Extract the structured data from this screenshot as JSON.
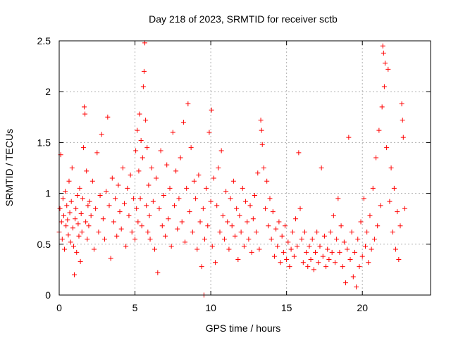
{
  "chart_data": {
    "type": "scatter",
    "title": "Day 218 of 2023, SRMTID for receiver sctb",
    "xlabel": "GPS time / hours",
    "ylabel": "SRMTID / TECUs",
    "xlim": [
      0,
      24.5
    ],
    "ylim": [
      0,
      2.5
    ],
    "xticks": [
      0,
      5,
      10,
      15,
      20
    ],
    "xtick_labels": [
      "0",
      "5",
      "10",
      "15",
      "20"
    ],
    "yticks": [
      0,
      0.5,
      1,
      1.5,
      2,
      2.5
    ],
    "ytick_labels": [
      "0",
      "0.5",
      "1",
      "1.5",
      "2",
      "2.5"
    ],
    "grid": true,
    "marker": "+",
    "color": "#ff0000",
    "series": [
      {
        "name": "SRMTID",
        "points": [
          [
            0.0,
            0.62
          ],
          [
            0.05,
            0.85
          ],
          [
            0.1,
            1.38
          ],
          [
            0.15,
            0.72
          ],
          [
            0.2,
            0.55
          ],
          [
            0.25,
            0.95
          ],
          [
            0.3,
            0.78
          ],
          [
            0.35,
            0.45
          ],
          [
            0.4,
            1.02
          ],
          [
            0.45,
            0.68
          ],
          [
            0.5,
            0.88
          ],
          [
            0.55,
            0.74
          ],
          [
            0.6,
            0.59
          ],
          [
            0.65,
            1.12
          ],
          [
            0.7,
            0.81
          ],
          [
            0.75,
            0.52
          ],
          [
            0.8,
            0.92
          ],
          [
            0.85,
            1.25
          ],
          [
            0.9,
            0.66
          ],
          [
            0.95,
            0.48
          ],
          [
            1.0,
            0.2
          ],
          [
            1.05,
            0.75
          ],
          [
            1.1,
            0.85
          ],
          [
            1.15,
            0.42
          ],
          [
            1.2,
            0.98
          ],
          [
            1.25,
            0.7
          ],
          [
            1.3,
            0.58
          ],
          [
            1.35,
            1.05
          ],
          [
            1.4,
            0.33
          ],
          [
            1.45,
            0.8
          ],
          [
            1.5,
            0.62
          ],
          [
            1.55,
            0.95
          ],
          [
            1.6,
            1.45
          ],
          [
            1.65,
            1.85
          ],
          [
            1.7,
            1.78
          ],
          [
            1.75,
            0.72
          ],
          [
            1.8,
            1.22
          ],
          [
            1.85,
            0.55
          ],
          [
            1.9,
            0.88
          ],
          [
            1.95,
            0.68
          ],
          [
            2.0,
            0.92
          ],
          [
            2.1,
            0.78
          ],
          [
            2.2,
            1.12
          ],
          [
            2.3,
            0.45
          ],
          [
            2.4,
            0.85
          ],
          [
            2.5,
            1.4
          ],
          [
            2.6,
            0.62
          ],
          [
            2.7,
            0.98
          ],
          [
            2.8,
            1.58
          ],
          [
            2.9,
            0.75
          ],
          [
            3.0,
            0.55
          ],
          [
            3.1,
            1.02
          ],
          [
            3.2,
            1.75
          ],
          [
            3.3,
            0.88
          ],
          [
            3.4,
            0.36
          ],
          [
            3.5,
            1.15
          ],
          [
            3.6,
            0.72
          ],
          [
            3.7,
            0.95
          ],
          [
            3.8,
            0.58
          ],
          [
            3.9,
            1.08
          ],
          [
            4.0,
            0.82
          ],
          [
            4.1,
            0.65
          ],
          [
            4.2,
            1.25
          ],
          [
            4.3,
            0.9
          ],
          [
            4.4,
            0.48
          ],
          [
            4.5,
            1.05
          ],
          [
            4.6,
            0.78
          ],
          [
            4.7,
            1.18
          ],
          [
            4.8,
            0.62
          ],
          [
            4.9,
            0.95
          ],
          [
            5.0,
            0.55
          ],
          [
            5.05,
            1.42
          ],
          [
            5.1,
            0.85
          ],
          [
            5.15,
            1.62
          ],
          [
            5.2,
            0.72
          ],
          [
            5.25,
            1.22
          ],
          [
            5.3,
            1.78
          ],
          [
            5.35,
            0.95
          ],
          [
            5.4,
            1.52
          ],
          [
            5.45,
            0.68
          ],
          [
            5.5,
            1.35
          ],
          [
            5.55,
            2.05
          ],
          [
            5.6,
            2.2
          ],
          [
            5.65,
            2.48
          ],
          [
            5.7,
            1.72
          ],
          [
            5.75,
            0.88
          ],
          [
            5.8,
            1.45
          ],
          [
            5.85,
            0.62
          ],
          [
            5.9,
            1.08
          ],
          [
            5.95,
            0.78
          ],
          [
            6.0,
            0.55
          ],
          [
            6.1,
            1.25
          ],
          [
            6.2,
            0.92
          ],
          [
            6.3,
            0.45
          ],
          [
            6.4,
            1.15
          ],
          [
            6.5,
            0.22
          ],
          [
            6.6,
            0.85
          ],
          [
            6.7,
            1.42
          ],
          [
            6.8,
            0.68
          ],
          [
            6.9,
            0.98
          ],
          [
            7.0,
            0.58
          ],
          [
            7.1,
            1.28
          ],
          [
            7.2,
            0.75
          ],
          [
            7.3,
            1.05
          ],
          [
            7.4,
            0.48
          ],
          [
            7.5,
            1.6
          ],
          [
            7.6,
            0.88
          ],
          [
            7.7,
            1.22
          ],
          [
            7.8,
            0.65
          ],
          [
            7.9,
            0.95
          ],
          [
            8.0,
            1.35
          ],
          [
            8.1,
            0.72
          ],
          [
            8.2,
            1.7
          ],
          [
            8.3,
            0.52
          ],
          [
            8.4,
            1.05
          ],
          [
            8.5,
            1.88
          ],
          [
            8.6,
            0.82
          ],
          [
            8.7,
            1.45
          ],
          [
            8.8,
            0.62
          ],
          [
            8.9,
            1.12
          ],
          [
            9.0,
            0.95
          ],
          [
            9.1,
            0.45
          ],
          [
            9.2,
            1.18
          ],
          [
            9.3,
            0.72
          ],
          [
            9.4,
            0.28
          ],
          [
            9.5,
            0.85
          ],
          [
            9.55,
            0.0
          ],
          [
            9.6,
            0.55
          ],
          [
            9.7,
            1.05
          ],
          [
            9.8,
            0.68
          ],
          [
            9.9,
            1.6
          ],
          [
            10.0,
            0.92
          ],
          [
            10.05,
            1.82
          ],
          [
            10.1,
            0.48
          ],
          [
            10.2,
            1.15
          ],
          [
            10.3,
            0.32
          ],
          [
            10.4,
            0.88
          ],
          [
            10.5,
            1.25
          ],
          [
            10.6,
            0.62
          ],
          [
            10.7,
            1.42
          ],
          [
            10.8,
            0.78
          ],
          [
            10.9,
            0.55
          ],
          [
            11.0,
            1.02
          ],
          [
            11.1,
            0.72
          ],
          [
            11.2,
            0.45
          ],
          [
            11.3,
            0.95
          ],
          [
            11.4,
            0.68
          ],
          [
            11.5,
            1.12
          ],
          [
            11.6,
            0.58
          ],
          [
            11.7,
            0.85
          ],
          [
            11.8,
            0.35
          ],
          [
            11.9,
            0.78
          ],
          [
            12.0,
            0.62
          ],
          [
            12.1,
            1.05
          ],
          [
            12.2,
            0.48
          ],
          [
            12.3,
            0.92
          ],
          [
            12.4,
            0.72
          ],
          [
            12.5,
            0.55
          ],
          [
            12.6,
            0.88
          ],
          [
            12.7,
            0.42
          ],
          [
            12.8,
            0.75
          ],
          [
            12.9,
            0.98
          ],
          [
            13.0,
            0.62
          ],
          [
            13.1,
            1.2
          ],
          [
            13.2,
            0.45
          ],
          [
            13.3,
            1.72
          ],
          [
            13.35,
            1.62
          ],
          [
            13.4,
            1.48
          ],
          [
            13.5,
            1.25
          ],
          [
            13.6,
            0.85
          ],
          [
            13.7,
            1.12
          ],
          [
            13.8,
            0.68
          ],
          [
            13.9,
            0.95
          ],
          [
            14.0,
            0.55
          ],
          [
            14.1,
            0.82
          ],
          [
            14.2,
            0.38
          ],
          [
            14.3,
            0.65
          ],
          [
            14.4,
            0.48
          ],
          [
            14.5,
            0.72
          ],
          [
            14.6,
            0.32
          ],
          [
            14.7,
            0.58
          ],
          [
            14.8,
            0.42
          ],
          [
            14.9,
            0.68
          ],
          [
            15.0,
            0.35
          ],
          [
            15.1,
            0.52
          ],
          [
            15.2,
            0.28
          ],
          [
            15.3,
            0.45
          ],
          [
            15.4,
            0.62
          ],
          [
            15.5,
            0.38
          ],
          [
            15.6,
            0.75
          ],
          [
            15.7,
            0.48
          ],
          [
            15.8,
            1.4
          ],
          [
            15.9,
            0.85
          ],
          [
            16.0,
            0.55
          ],
          [
            16.1,
            0.32
          ],
          [
            16.2,
            0.62
          ],
          [
            16.3,
            0.42
          ],
          [
            16.4,
            0.28
          ],
          [
            16.5,
            0.48
          ],
          [
            16.6,
            0.35
          ],
          [
            16.7,
            0.55
          ],
          [
            16.8,
            0.25
          ],
          [
            16.9,
            0.42
          ],
          [
            17.0,
            0.62
          ],
          [
            17.1,
            0.32
          ],
          [
            17.2,
            0.48
          ],
          [
            17.3,
            1.25
          ],
          [
            17.4,
            0.38
          ],
          [
            17.5,
            0.58
          ],
          [
            17.6,
            0.28
          ],
          [
            17.7,
            0.45
          ],
          [
            17.8,
            0.35
          ],
          [
            17.9,
            0.62
          ],
          [
            18.0,
            0.42
          ],
          [
            18.1,
            0.78
          ],
          [
            18.2,
            0.32
          ],
          [
            18.3,
            0.55
          ],
          [
            18.4,
            0.95
          ],
          [
            18.5,
            0.42
          ],
          [
            18.6,
            0.68
          ],
          [
            18.7,
            0.28
          ],
          [
            18.8,
            0.52
          ],
          [
            18.9,
            0.12
          ],
          [
            19.0,
            0.45
          ],
          [
            19.1,
            1.55
          ],
          [
            19.2,
            0.35
          ],
          [
            19.3,
            0.62
          ],
          [
            19.4,
            0.18
          ],
          [
            19.5,
            0.42
          ],
          [
            19.6,
            0.08
          ],
          [
            19.7,
            0.55
          ],
          [
            19.8,
            0.28
          ],
          [
            19.9,
            0.72
          ],
          [
            20.0,
            0.38
          ],
          [
            20.1,
            0.95
          ],
          [
            20.2,
            0.48
          ],
          [
            20.3,
            0.62
          ],
          [
            20.4,
            0.32
          ],
          [
            20.5,
            0.78
          ],
          [
            20.6,
            0.45
          ],
          [
            20.7,
            1.05
          ],
          [
            20.8,
            0.55
          ],
          [
            20.9,
            1.35
          ],
          [
            21.0,
            0.68
          ],
          [
            21.1,
            1.62
          ],
          [
            21.2,
            0.88
          ],
          [
            21.3,
            1.85
          ],
          [
            21.35,
            2.45
          ],
          [
            21.4,
            2.38
          ],
          [
            21.45,
            2.05
          ],
          [
            21.5,
            2.28
          ],
          [
            21.6,
            1.45
          ],
          [
            21.7,
            2.22
          ],
          [
            21.8,
            0.92
          ],
          [
            21.9,
            1.25
          ],
          [
            22.0,
            0.62
          ],
          [
            22.1,
            1.05
          ],
          [
            22.2,
            0.45
          ],
          [
            22.3,
            0.82
          ],
          [
            22.4,
            0.35
          ],
          [
            22.5,
            0.68
          ],
          [
            22.6,
            1.88
          ],
          [
            22.65,
            1.72
          ],
          [
            22.7,
            1.55
          ],
          [
            22.8,
            0.85
          ]
        ]
      }
    ]
  }
}
